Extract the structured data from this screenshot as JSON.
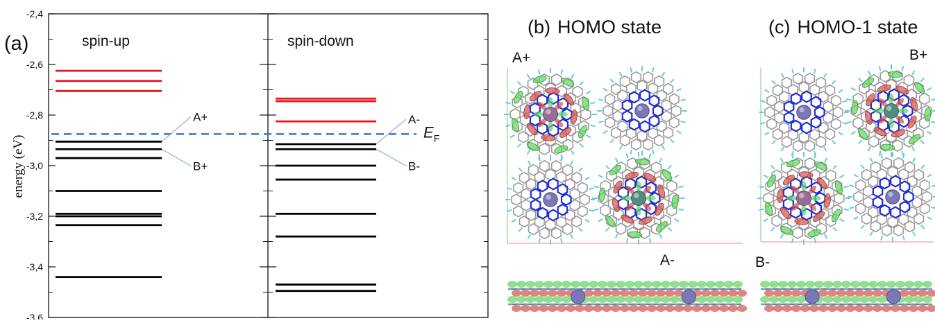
{
  "panel_labels": {
    "a": "(a)",
    "b": "(b)",
    "c": "(c)"
  },
  "panel_b": {
    "title": "HOMO state",
    "top_label": "A+",
    "bottom_label": "A-"
  },
  "panel_c": {
    "title": "HOMO-1 state",
    "top_label": "B+",
    "bottom_label": "B-"
  },
  "colors": {
    "occupied": "#000000",
    "unoccupied": "#e8141c",
    "fermi": "#2b7bc8",
    "callout": "#8aa8dc",
    "grid_sheet": "#9a9a9a",
    "bond_blue": "#1f2fd0",
    "atom_center": "#7b78b8",
    "lobe_green": "#5fd35f",
    "lobe_red": "#d2504c",
    "hydrogen": "#5fcde0"
  },
  "chart_data": {
    "type": "energy-level diagram",
    "ylabel": "energy (eV)",
    "ylim": [
      -3.6,
      -2.4
    ],
    "yticks": [
      "-2,4",
      "-2,6",
      "-2,8",
      "-3,0",
      "-3,2",
      "-3,4",
      "-3,6"
    ],
    "ytick_values": [
      -2.4,
      -2.6,
      -2.8,
      -3.0,
      -3.2,
      -3.4,
      -3.6
    ],
    "fermi_level": {
      "label_main": "E",
      "label_sub": "F",
      "value": -2.875
    },
    "series": [
      {
        "name": "spin-up",
        "occupied": [
          -2.905,
          -2.935,
          -2.97,
          -3.1,
          -3.19,
          -3.2,
          -3.235,
          -3.44
        ],
        "unoccupied": [
          -2.625,
          -2.665,
          -2.705
        ],
        "annotations": [
          {
            "label": "A+",
            "value": -2.905
          },
          {
            "label": "B+",
            "value": -2.935
          }
        ]
      },
      {
        "name": "spin-down",
        "occupied": [
          -2.915,
          -2.935,
          -3.0,
          -3.055,
          -3.19,
          -3.28,
          -3.47,
          -3.495
        ],
        "unoccupied": [
          -2.735,
          -2.745,
          -2.825
        ],
        "annotations": [
          {
            "label": "A-",
            "value": -2.915
          },
          {
            "label": "B-",
            "value": -2.935
          }
        ]
      }
    ]
  }
}
